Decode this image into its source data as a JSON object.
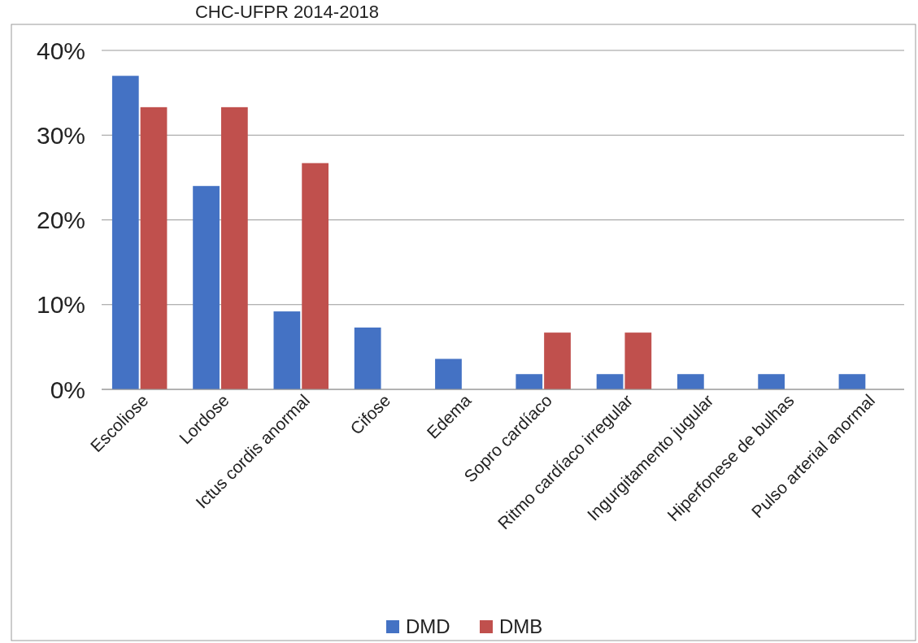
{
  "chart_data": {
    "type": "bar",
    "title": "CHC-UFPR 2014-2018",
    "categories": [
      "Escoliose",
      "Lordose",
      "Ictus cordis anormal",
      "Cifose",
      "Edema",
      "Sopro cardíaco",
      "Ritmo cardíaco irregular",
      "Ingurgitamento jugular",
      "Hiperfonese de bulhas",
      "Pulso arterial anormal"
    ],
    "series": [
      {
        "name": "DMD",
        "color": "#4472c4",
        "values": [
          37,
          24,
          9.2,
          7.3,
          3.6,
          1.8,
          1.8,
          1.8,
          1.8,
          1.8
        ]
      },
      {
        "name": "DMB",
        "color": "#c0504d",
        "values": [
          33.3,
          33.3,
          26.7,
          0,
          0,
          6.7,
          6.7,
          0,
          0,
          0
        ]
      }
    ],
    "ylim": [
      0,
      40
    ],
    "yticks": [
      {
        "value": 0,
        "label": "0%"
      },
      {
        "value": 10,
        "label": "10%"
      },
      {
        "value": 20,
        "label": "20%"
      },
      {
        "value": 30,
        "label": "30%"
      },
      {
        "value": 40,
        "label": "40%"
      }
    ],
    "grid": "y",
    "legend": "bottom"
  }
}
